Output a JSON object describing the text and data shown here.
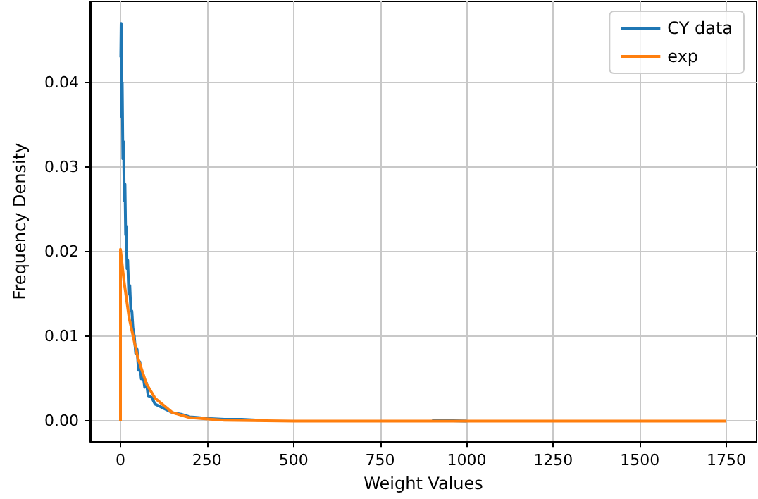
{
  "chart_data": {
    "type": "line",
    "xlabel": "Weight Values",
    "ylabel": "Frequency Density",
    "xlim": [
      -87.5,
      1837.5
    ],
    "ylim": [
      -0.0024,
      0.0496
    ],
    "xticks": [
      0,
      250,
      500,
      750,
      1000,
      1250,
      1500,
      1750
    ],
    "yticks": [
      {
        "value": 0,
        "label": "0.00"
      },
      {
        "value": 0.01,
        "label": "0.01"
      },
      {
        "value": 0.02,
        "label": "0.02"
      },
      {
        "value": 0.03,
        "label": "0.03"
      },
      {
        "value": 0.04,
        "label": "0.04"
      }
    ],
    "grid": true,
    "legend": "top right",
    "marker": "none",
    "line_style": "solid",
    "series": [
      {
        "name": "CY data",
        "color": "#1f77b4",
        "x": [
          1,
          2,
          3,
          5,
          7,
          9,
          11,
          13,
          15,
          17,
          19,
          21,
          24,
          27,
          30,
          33,
          36,
          40,
          44,
          48,
          52,
          56,
          60,
          65,
          70,
          75,
          80,
          90,
          100,
          110,
          125,
          140,
          150,
          175,
          200,
          225,
          250,
          300,
          350,
          400,
          500,
          600,
          700,
          800,
          900,
          1000
        ],
        "values": [
          0.043,
          0.047,
          0.036,
          0.04,
          0.031,
          0.033,
          0.026,
          0.028,
          0.022,
          0.023,
          0.018,
          0.019,
          0.015,
          0.016,
          0.013,
          0.013,
          0.011,
          0.01,
          0.008,
          0.0085,
          0.006,
          0.007,
          0.005,
          0.0055,
          0.004,
          0.0045,
          0.003,
          0.0028,
          0.002,
          0.0018,
          0.0015,
          0.0012,
          0.001,
          0.0008,
          0.0005,
          0.0004,
          0.0003,
          0.0002,
          0.0002,
          0.0001,
          null,
          null,
          null,
          null,
          0.0001,
          0
        ]
      },
      {
        "name": "exp",
        "color": "#ff7f0e",
        "x": [
          0,
          0,
          10,
          25,
          50,
          75,
          100,
          150,
          200,
          300,
          500,
          1750
        ],
        "values": [
          0,
          0.0203,
          0.0166,
          0.0122,
          0.0075,
          0.0044,
          0.0027,
          0.001,
          0.0004,
          0.0001,
          0,
          0
        ]
      }
    ]
  }
}
